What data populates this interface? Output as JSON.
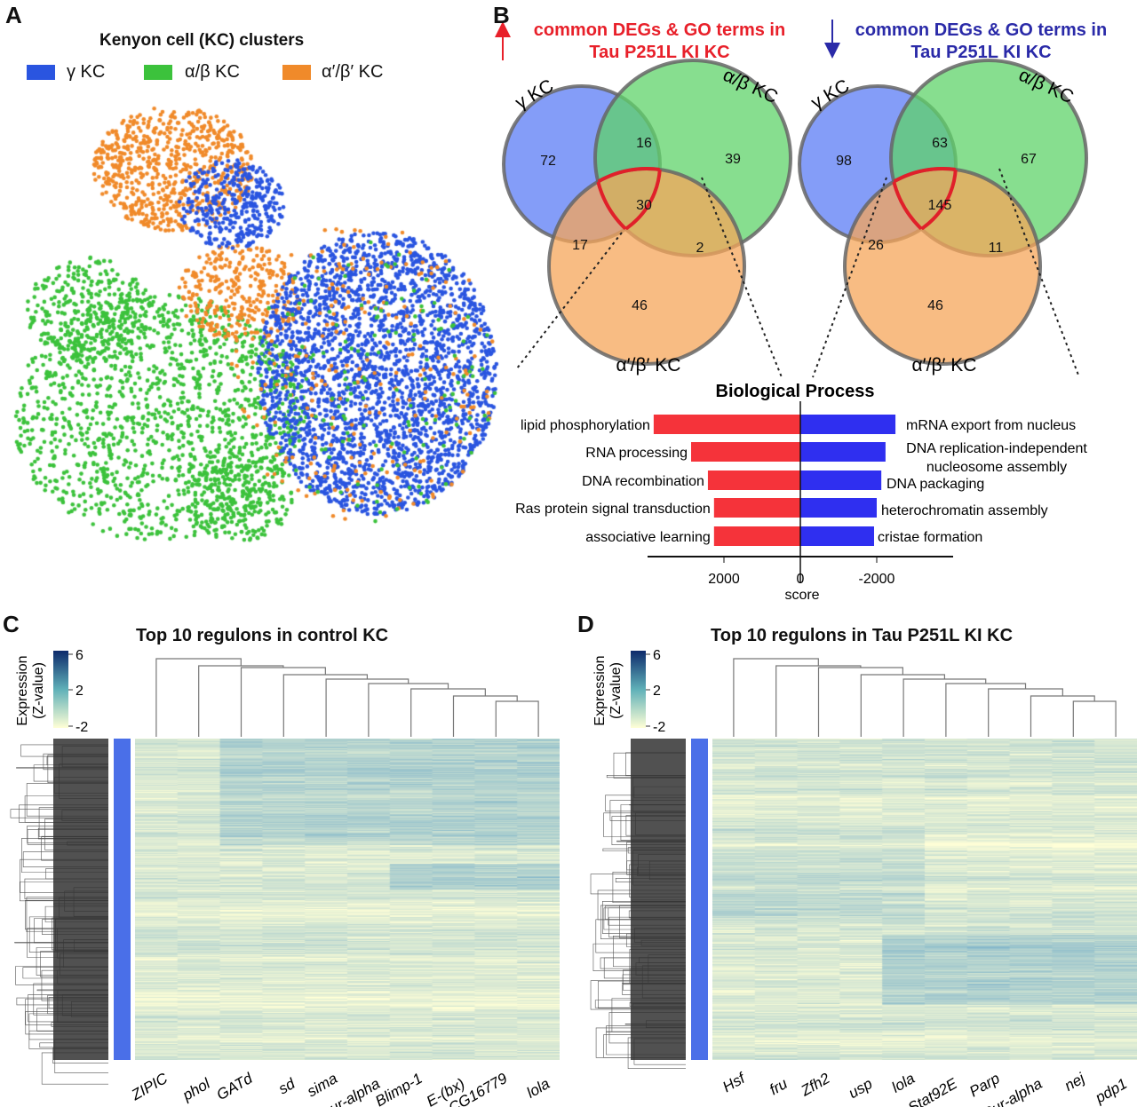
{
  "panels": {
    "a": "A",
    "b": "B",
    "c": "C",
    "d": "D"
  },
  "panel_a": {
    "title": "Kenyon cell (KC) clusters",
    "legend": [
      {
        "label": "γ KC",
        "color": "#2a55e0"
      },
      {
        "label": "α/β KC",
        "color": "#3cc23c"
      },
      {
        "label": "α′/β′ KC",
        "color": "#f08a2a"
      }
    ]
  },
  "panel_b": {
    "up_header": {
      "line1": "common DEGs & GO terms in",
      "line2": "Tau P251L KI KC",
      "color": "#e8202a",
      "icon": "arrow-up-icon"
    },
    "down_header": {
      "line1": "common DEGs & GO terms in",
      "line2": "Tau P251L KI KC",
      "color": "#2a2aa8",
      "icon": "arrow-down-icon"
    },
    "venn_labels": {
      "gamma": "γ KC",
      "ab": "α/β KC",
      "apbp": "α′/β′ KC"
    },
    "venn_colors": {
      "gamma": "#5b7cf5",
      "ab": "#5fd36a",
      "apbp": "#f5a55a",
      "highlight": "#e0202a"
    }
  },
  "panel_c": {
    "title": "Top 10 regulons in control KC",
    "colorbar_label1": "Expression",
    "colorbar_label2": "(Z-value)",
    "colorbar_ticks": [
      "6",
      "2",
      "-2"
    ]
  },
  "panel_d": {
    "title": "Top 10 regulons in Tau P251L KI KC",
    "colorbar_label1": "Expression",
    "colorbar_label2": "(Z-value)",
    "colorbar_ticks": [
      "6",
      "2",
      "-2"
    ]
  },
  "chart_data": [
    {
      "type": "scatter",
      "title": "Kenyon cell (KC) clusters",
      "series": [
        {
          "name": "γ KC"
        },
        {
          "name": "α/β KC"
        },
        {
          "name": "α′/β′ KC"
        }
      ]
    },
    {
      "type": "venn",
      "title": "common DEGs & GO terms in Tau P251L KI KC (up)",
      "sets": [
        "γ KC",
        "α/β KC",
        "α′/β′ KC"
      ],
      "regions": {
        "gamma_only": "72",
        "gamma_ab": "16",
        "ab_only": "39",
        "all": "30",
        "gamma_apbp": "17",
        "ab_apbp": "2",
        "apbp_only": "46"
      }
    },
    {
      "type": "venn",
      "title": "common DEGs & GO terms in Tau P251L KI KC (down)",
      "sets": [
        "γ KC",
        "α/β KC",
        "α′/β′ KC"
      ],
      "regions": {
        "gamma_only": "98",
        "gamma_ab": "63",
        "ab_only": "67",
        "all": "145",
        "gamma_apbp": "26",
        "ab_apbp": "11",
        "apbp_only": "46"
      }
    },
    {
      "type": "bar",
      "title": "Biological Process",
      "xlabel": "score",
      "xlim": [
        4000,
        -4000
      ],
      "ticks": [
        "2000",
        "0",
        "-2000"
      ],
      "series": [
        {
          "color": "#f5333a",
          "categories": [
            "lipid phosphorylation",
            "RNA processing",
            "DNA recombination",
            "Ras protein signal transduction",
            "associative learning"
          ],
          "values": [
            3840,
            2860,
            2420,
            2260,
            2260
          ]
        },
        {
          "color": "#2f2ff0",
          "categories": [
            "mRNA export from nucleus",
            "DNA replication-independent nucleosome assembly",
            "DNA packaging",
            "heterochromatin assembly",
            "cristae formation"
          ],
          "values": [
            -2490,
            -2230,
            -2120,
            -2000,
            -1930
          ]
        }
      ]
    },
    {
      "type": "heatmap",
      "title": "Top 10 regulons in control KC",
      "columns": [
        "ZIPIC",
        "phol",
        "GATd",
        "sd",
        "sima",
        "pur-alpha",
        "Blimp-1",
        "E-(bx)",
        "CG16779",
        "lola"
      ],
      "colorbar_range": [
        -2,
        6
      ]
    },
    {
      "type": "heatmap",
      "title": "Top 10 regulons in Tau P251L KI KC",
      "columns": [
        "Hsf",
        "fru",
        "Zfh2",
        "usp",
        "lola",
        "Stat92E",
        "Parp",
        "Pur-alpha",
        "nej",
        "pdp1"
      ],
      "colorbar_range": [
        -2,
        6
      ]
    }
  ]
}
